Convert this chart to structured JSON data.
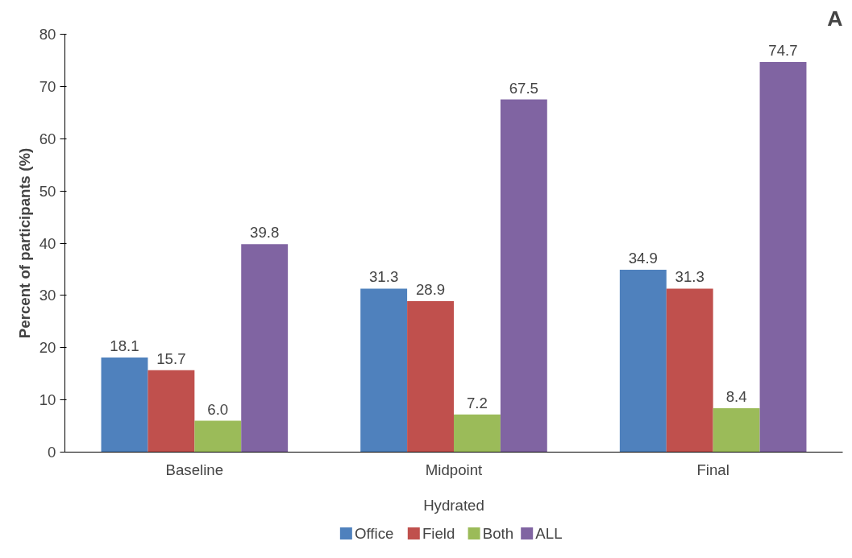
{
  "chart_data": {
    "type": "bar",
    "title": "A",
    "xlabel": "Hydrated",
    "ylabel": "Percent of participants (%)",
    "categories": [
      "Baseline",
      "Midpoint",
      "Final"
    ],
    "series": [
      {
        "name": "Office",
        "color": "#4f81bd",
        "values": [
          18.1,
          31.3,
          34.9
        ],
        "value_labels": [
          "18.1",
          "31.3",
          "34.9"
        ]
      },
      {
        "name": "Field",
        "color": "#c0504d",
        "values": [
          15.7,
          28.9,
          31.3
        ],
        "value_labels": [
          "15.7",
          "28.9",
          "31.3"
        ]
      },
      {
        "name": "Both",
        "color": "#9bbb59",
        "values": [
          6.0,
          7.2,
          8.4
        ],
        "value_labels": [
          "6.0",
          "7.2",
          "8.4"
        ]
      },
      {
        "name": "ALL",
        "color": "#8064a2",
        "values": [
          39.8,
          67.5,
          74.7
        ],
        "value_labels": [
          "39.8",
          "67.5",
          "74.7"
        ]
      }
    ],
    "ylim": [
      0,
      80
    ],
    "yticks": [
      0,
      10,
      20,
      30,
      40,
      50,
      60,
      70,
      80
    ],
    "grid": false,
    "legend": "bottom"
  }
}
